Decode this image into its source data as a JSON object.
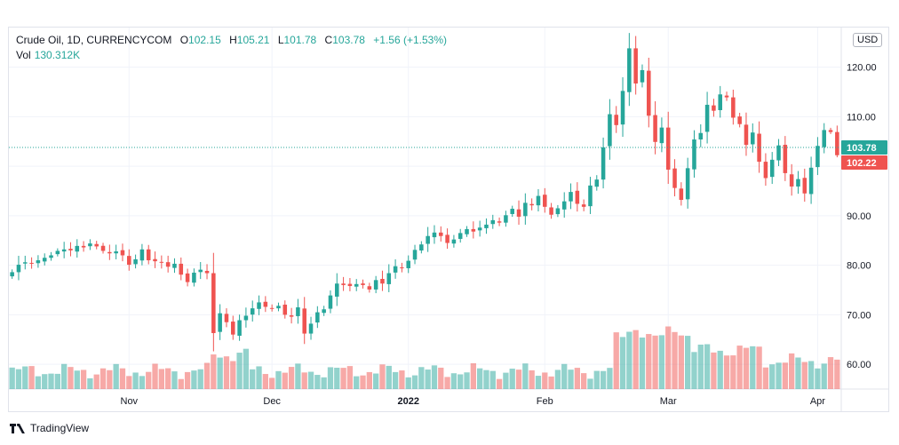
{
  "legend": {
    "symbol": "Crude Oil, 1D, CURRENCYCOM",
    "o_label": "O",
    "o_value": "102.15",
    "h_label": "H",
    "h_value": "105.21",
    "l_label": "L",
    "l_value": "101.78",
    "c_label": "C",
    "c_value": "103.78",
    "change": "+1.56 (+1.53%)",
    "vol_label": "Vol",
    "vol_value": "130.312K"
  },
  "currency": "USD",
  "footer": {
    "brand": "TradingView"
  },
  "colors": {
    "up": "#26a69a",
    "down": "#ef5350",
    "vol_up": "#26a69a",
    "vol_down": "#ef5350"
  },
  "chart_data": {
    "type": "candlestick",
    "ylim": [
      55,
      128
    ],
    "yticks": [
      60,
      70,
      80,
      90,
      100,
      110,
      120
    ],
    "ytick_labels": [
      "60.00",
      "70.00",
      "80.00",
      "90.00",
      "100.00",
      "110.00",
      "120.00"
    ],
    "x_labels": [
      {
        "text": "Nov",
        "bar": 18
      },
      {
        "text": "Dec",
        "bar": 40
      },
      {
        "text": "2022",
        "bar": 61
      },
      {
        "text": "Feb",
        "bar": 82
      },
      {
        "text": "Mar",
        "bar": 101
      },
      {
        "text": "Apr",
        "bar": 124
      }
    ],
    "last_price": 103.78,
    "last_price_label": "103.78",
    "prev_price": 102.22,
    "prev_price_label": "102.22",
    "closes": [
      78.6,
      80.1,
      80.6,
      80.3,
      81.0,
      81.5,
      82.0,
      82.9,
      83.2,
      83.0,
      83.9,
      83.6,
      84.4,
      83.8,
      82.9,
      82.4,
      82.8,
      82.0,
      80.1,
      81.2,
      83.2,
      81.0,
      80.8,
      80.5,
      79.7,
      80.3,
      78.1,
      76.6,
      78.5,
      79.1,
      78.4,
      66.3,
      70.3,
      68.5,
      66.0,
      68.9,
      69.8,
      71.3,
      72.5,
      71.6,
      71.3,
      71.8,
      70.0,
      69.6,
      71.5,
      66.2,
      68.2,
      70.5,
      71.1,
      73.9,
      76.3,
      76.0,
      75.8,
      76.2,
      76.0,
      75.1,
      77.0,
      76.3,
      78.4,
      79.8,
      79.4,
      80.9,
      83.1,
      84.2,
      85.9,
      86.6,
      85.9,
      84.5,
      85.2,
      86.5,
      87.3,
      86.8,
      87.6,
      88.2,
      89.1,
      88.6,
      90.1,
      91.4,
      89.8,
      92.6,
      92.1,
      94.0,
      91.8,
      90.2,
      91.5,
      92.9,
      94.8,
      92.4,
      91.8,
      96.1,
      97.3,
      103.8,
      110.5,
      108.3,
      115.2,
      123.8,
      116.7,
      119.4,
      110.2,
      104.9,
      107.8,
      99.3,
      95.6,
      93.2,
      99.6,
      105.4,
      106.7,
      112.4,
      111.2,
      114.5,
      113.9,
      109.8,
      108.5,
      104.3,
      106.8,
      100.9,
      97.6,
      101.3,
      104.2,
      98.6,
      95.9,
      97.4,
      94.5,
      99.7,
      104.1,
      107.3,
      106.9,
      102.22
    ]
  }
}
